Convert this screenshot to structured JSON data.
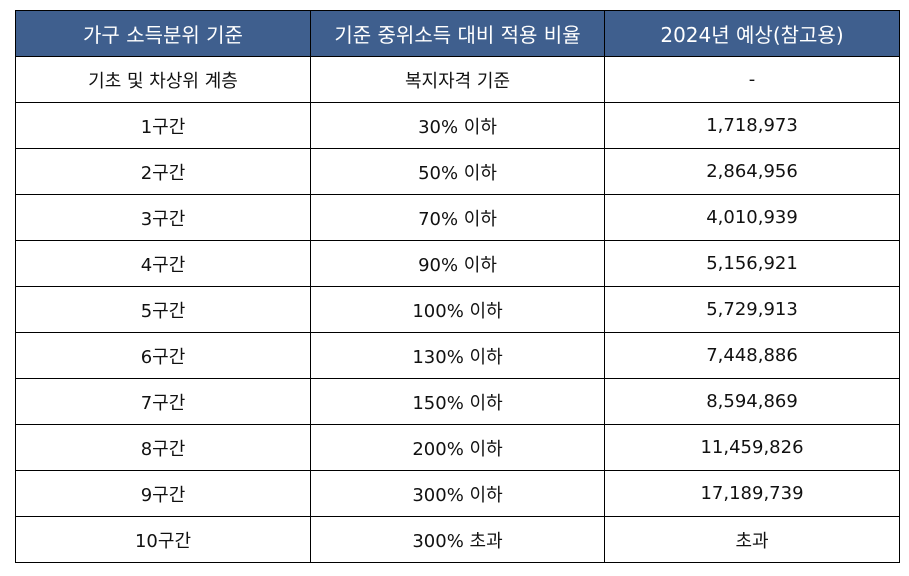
{
  "colors": {
    "header_bg": "#3f5f8e",
    "header_text": "#ffffff",
    "border": "#000000"
  },
  "table": {
    "headers": [
      "가구 소득분위 기준",
      "기준 중위소득 대비 적용 비율",
      "2024년 예상(참고용)"
    ],
    "rows": [
      [
        "기초 및 차상위 계층",
        "복지자격 기준",
        "-"
      ],
      [
        "1구간",
        "30% 이하",
        "1,718,973"
      ],
      [
        "2구간",
        "50% 이하",
        "2,864,956"
      ],
      [
        "3구간",
        "70% 이하",
        "4,010,939"
      ],
      [
        "4구간",
        "90% 이하",
        "5,156,921"
      ],
      [
        "5구간",
        "100% 이하",
        "5,729,913"
      ],
      [
        "6구간",
        "130% 이하",
        "7,448,886"
      ],
      [
        "7구간",
        "150% 이하",
        "8,594,869"
      ],
      [
        "8구간",
        "200% 이하",
        "11,459,826"
      ],
      [
        "9구간",
        "300% 이하",
        "17,189,739"
      ],
      [
        "10구간",
        "300% 초과",
        "초과"
      ]
    ]
  }
}
